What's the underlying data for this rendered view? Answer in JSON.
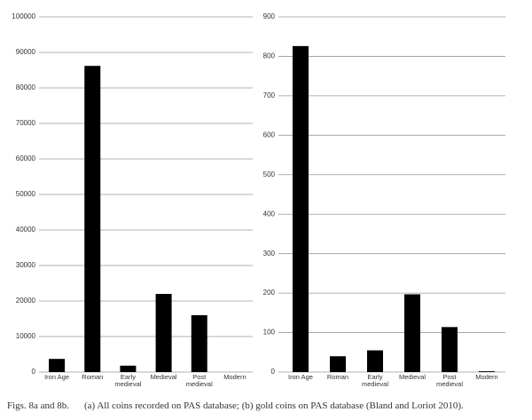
{
  "chart_data": [
    {
      "type": "bar",
      "categories": [
        "Iron Age",
        "Roman",
        "Early medieval",
        "Medieval",
        "Post medieval",
        "Modern"
      ],
      "values": [
        3700,
        86200,
        1800,
        22000,
        16000,
        0
      ],
      "color": "#000000",
      "ylim": [
        0,
        100000
      ],
      "yticks": [
        0,
        10000,
        20000,
        30000,
        40000,
        50000,
        60000,
        70000,
        80000,
        90000,
        100000
      ],
      "grid": true
    },
    {
      "type": "bar",
      "categories": [
        "Iron Age",
        "Roman",
        "Early medieval",
        "Medieval",
        "Post medieval",
        "Modern"
      ],
      "values": [
        826,
        40,
        55,
        197,
        114,
        2
      ],
      "color": "#000000",
      "ylim": [
        0,
        900
      ],
      "yticks": [
        0,
        100,
        200,
        300,
        400,
        500,
        600,
        700,
        800,
        900
      ],
      "grid": true
    }
  ],
  "caption_label": "Figs. 8a and 8b.",
  "caption_text": "(a) All coins recorded on PAS database; (b) gold coins on PAS database (Bland and Loriot 2010)."
}
